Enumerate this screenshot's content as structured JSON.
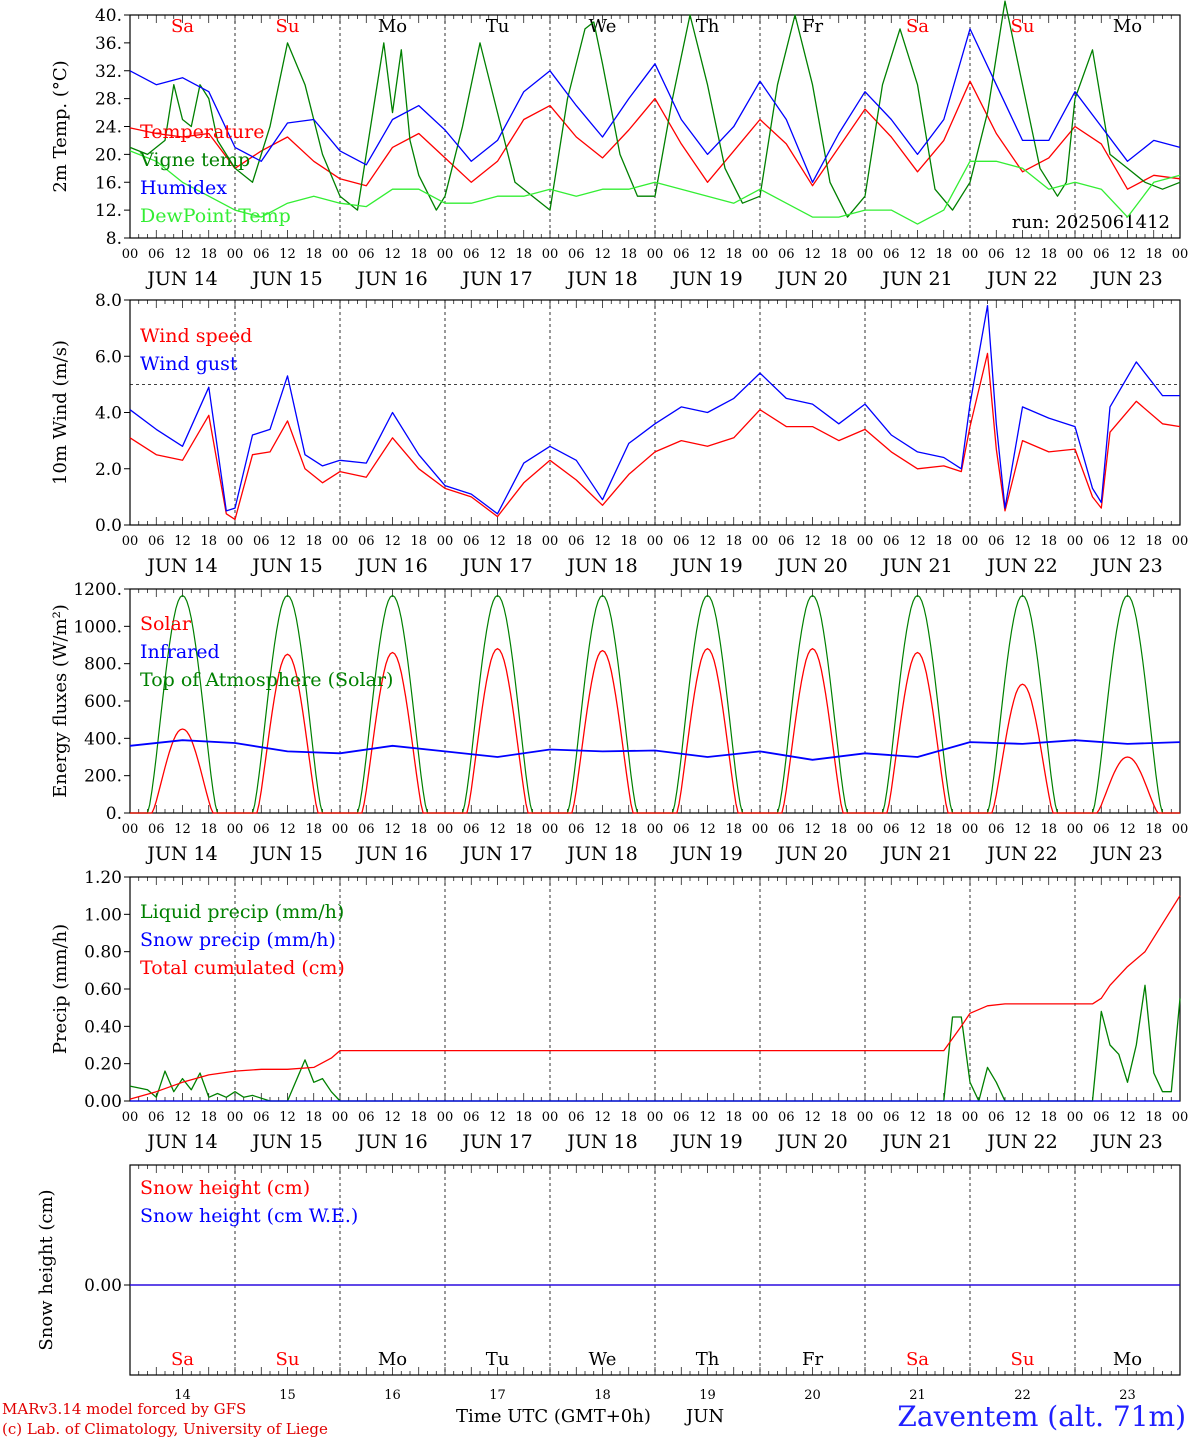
{
  "colors": {
    "red": "#ff0000",
    "darkgreen": "#008000",
    "blue": "#0000ff",
    "lightgreen": "#33ee33",
    "weekend": "#ff0000"
  },
  "days": {
    "weekday_labels": [
      "Sa",
      "Su",
      "Mo",
      "Tu",
      "We",
      "Th",
      "Fr",
      "Sa",
      "Su",
      "Mo"
    ],
    "date_labels": [
      "JUN 14",
      "JUN 15",
      "JUN 16",
      "JUN 17",
      "JUN 18",
      "JUN 19",
      "JUN 20",
      "JUN 21",
      "JUN 22",
      "JUN 23"
    ],
    "day_numbers": [
      "14",
      "15",
      "16",
      "17",
      "18",
      "19",
      "20",
      "21",
      "22",
      "23"
    ],
    "hour_ticks": [
      "00",
      "06",
      "12",
      "18"
    ],
    "final_tick": "00"
  },
  "footer": {
    "model": "MARv3.14 model forced by GFS",
    "lab": "(c) Lab. of Climatology, University of Liege",
    "xlabel": "Time UTC (GMT+0h)",
    "month": "JUN",
    "station": "Zaventem (alt. 71m)"
  },
  "chart_data": [
    {
      "type": "line",
      "ylabel": "2m Temp. (°C)",
      "ylim": [
        8,
        40
      ],
      "ytick_labels": [
        "8.",
        "12.",
        "16.",
        "20.",
        "24.",
        "28.",
        "32.",
        "36.",
        "40."
      ],
      "annotation": "run: 2025061412",
      "x_unit": "hours since JUN 14 00 UTC",
      "series": [
        {
          "name": "Temperature",
          "color": "red",
          "x": [
            0,
            6,
            12,
            18,
            24,
            30,
            36,
            42,
            48,
            54,
            60,
            66,
            72,
            78,
            84,
            90,
            96,
            102,
            108,
            114,
            120,
            126,
            132,
            138,
            144,
            150,
            156,
            162,
            168,
            174,
            180,
            186,
            192,
            198,
            204,
            210,
            216,
            222,
            228,
            234,
            240
          ],
          "y": [
            23.8,
            23,
            22.5,
            23,
            18,
            20.5,
            22.5,
            19,
            16.5,
            15.5,
            21,
            23,
            19.5,
            16,
            19,
            25,
            27,
            22.5,
            19.5,
            23.5,
            28,
            21.5,
            16,
            20.5,
            25,
            21.5,
            15.5,
            21,
            26.5,
            22.5,
            17.5,
            22,
            30.5,
            23,
            17.5,
            19.5,
            24,
            21.5,
            15,
            17,
            16.5
          ]
        },
        {
          "name": "Vigne temp",
          "color": "darkgreen",
          "x": [
            0,
            4,
            8,
            10,
            12,
            14,
            16,
            18,
            20,
            24,
            28,
            32,
            36,
            40,
            44,
            48,
            52,
            56,
            58,
            60,
            62,
            64,
            66,
            70,
            72,
            76,
            80,
            84,
            88,
            92,
            96,
            100,
            104,
            106,
            108,
            112,
            116,
            120,
            124,
            128,
            132,
            136,
            140,
            144,
            148,
            152,
            156,
            160,
            164,
            168,
            172,
            176,
            180,
            184,
            188,
            192,
            196,
            200,
            204,
            208,
            212,
            214,
            216,
            220,
            224,
            228,
            232,
            236,
            240
          ],
          "y": [
            21,
            20,
            22,
            30,
            25,
            24,
            30,
            28,
            22,
            18,
            16,
            24,
            36,
            30,
            20,
            14,
            12,
            28,
            36,
            26,
            35,
            22,
            17,
            12,
            14,
            24,
            36,
            26,
            16,
            14,
            12,
            28,
            38,
            39,
            33,
            20,
            14,
            14,
            28,
            40,
            30,
            18,
            13,
            14,
            30,
            40,
            30,
            16,
            11,
            14,
            30,
            38,
            30,
            15,
            12,
            16,
            26,
            42,
            30,
            18,
            14,
            16,
            28,
            35,
            20,
            18,
            16,
            15,
            16
          ]
        },
        {
          "name": "Humidex",
          "color": "blue",
          "x": [
            0,
            6,
            12,
            18,
            24,
            30,
            36,
            42,
            48,
            54,
            60,
            66,
            72,
            78,
            84,
            90,
            96,
            102,
            108,
            114,
            120,
            126,
            132,
            138,
            144,
            150,
            156,
            162,
            168,
            174,
            180,
            186,
            192,
            198,
            204,
            210,
            216,
            222,
            228,
            234,
            240
          ],
          "y": [
            32,
            30,
            31,
            29,
            21,
            19,
            24.5,
            25,
            20.5,
            18.5,
            25,
            27,
            23.5,
            19,
            22,
            29,
            32,
            27,
            22.5,
            28,
            33,
            25,
            20,
            24,
            30.5,
            25,
            16,
            23,
            29,
            25,
            20,
            25,
            38,
            30,
            22,
            22,
            29,
            24,
            19,
            22,
            21
          ]
        },
        {
          "name": "DewPoint Temp",
          "color": "lightgreen",
          "x": [
            0,
            6,
            12,
            18,
            24,
            30,
            36,
            42,
            48,
            54,
            60,
            66,
            72,
            78,
            84,
            90,
            96,
            102,
            108,
            114,
            120,
            126,
            132,
            138,
            144,
            150,
            156,
            162,
            168,
            174,
            180,
            186,
            192,
            198,
            204,
            210,
            216,
            222,
            228,
            234,
            240
          ],
          "y": [
            20.5,
            19,
            16,
            14,
            12,
            11,
            13,
            14,
            13,
            12.5,
            15,
            15,
            13,
            13,
            14,
            14,
            15,
            14,
            15,
            15,
            16,
            15,
            14,
            13,
            15,
            13,
            11,
            11,
            12,
            12,
            10,
            12,
            19,
            19,
            18,
            15,
            16,
            15,
            11,
            16,
            17
          ]
        }
      ]
    },
    {
      "type": "line",
      "ylabel": "10m Wind (m/s)",
      "ylim": [
        0,
        8
      ],
      "ytick_labels": [
        "0.0",
        "2.0",
        "4.0",
        "6.0",
        "8.0"
      ],
      "reference_line": 5,
      "series": [
        {
          "name": "Wind speed",
          "color": "red",
          "x": [
            0,
            6,
            12,
            18,
            22,
            24,
            28,
            32,
            36,
            40,
            44,
            48,
            54,
            60,
            66,
            72,
            78,
            84,
            90,
            96,
            102,
            108,
            114,
            120,
            126,
            132,
            138,
            144,
            150,
            156,
            162,
            168,
            174,
            180,
            186,
            190,
            192,
            196,
            198,
            200,
            204,
            210,
            216,
            220,
            222,
            224,
            230,
            236,
            240
          ],
          "y": [
            3.1,
            2.5,
            2.3,
            3.9,
            0.4,
            0.2,
            2.5,
            2.6,
            3.7,
            2.0,
            1.5,
            1.9,
            1.7,
            3.1,
            2.0,
            1.3,
            1.0,
            0.3,
            1.5,
            2.3,
            1.6,
            0.7,
            1.8,
            2.6,
            3.0,
            2.8,
            3.1,
            4.1,
            3.5,
            3.5,
            3.0,
            3.4,
            2.6,
            2.0,
            2.1,
            1.9,
            3.5,
            6.1,
            2.7,
            0.5,
            3.0,
            2.6,
            2.7,
            1.0,
            0.6,
            3.3,
            4.4,
            3.6,
            3.5
          ]
        },
        {
          "name": "Wind gust",
          "color": "blue",
          "x": [
            0,
            6,
            12,
            18,
            22,
            24,
            28,
            32,
            36,
            40,
            44,
            48,
            54,
            60,
            66,
            72,
            78,
            84,
            90,
            96,
            102,
            108,
            114,
            120,
            126,
            132,
            138,
            144,
            150,
            156,
            162,
            168,
            174,
            180,
            186,
            190,
            192,
            196,
            198,
            200,
            204,
            210,
            216,
            220,
            222,
            224,
            230,
            236,
            240
          ],
          "y": [
            4.1,
            3.4,
            2.8,
            4.9,
            0.5,
            0.6,
            3.2,
            3.4,
            5.3,
            2.5,
            2.1,
            2.3,
            2.2,
            4.0,
            2.5,
            1.4,
            1.1,
            0.4,
            2.2,
            2.8,
            2.3,
            0.9,
            2.9,
            3.6,
            4.2,
            4.0,
            4.5,
            5.4,
            4.5,
            4.3,
            3.6,
            4.3,
            3.2,
            2.6,
            2.4,
            2.0,
            4.3,
            7.8,
            3.6,
            0.6,
            4.2,
            3.8,
            3.5,
            1.3,
            0.8,
            4.2,
            5.8,
            4.6,
            4.6
          ]
        }
      ]
    },
    {
      "type": "line",
      "ylabel": "Energy fluxes (W/m²)",
      "ylim": [
        0,
        1200
      ],
      "ytick_labels": [
        "0.",
        "200.",
        "400.",
        "600.",
        "800.",
        "1000.",
        "1200."
      ],
      "toa_peak": 1165,
      "series": [
        {
          "name": "Solar",
          "color": "red",
          "daily_peaks": [
            450,
            850,
            860,
            880,
            870,
            880,
            880,
            860,
            690,
            300
          ]
        },
        {
          "name": "Infrared",
          "color": "blue",
          "x": [
            0,
            12,
            24,
            36,
            48,
            60,
            72,
            84,
            96,
            108,
            120,
            132,
            144,
            156,
            168,
            180,
            192,
            204,
            216,
            228,
            240
          ],
          "y": [
            360,
            390,
            375,
            330,
            320,
            360,
            330,
            300,
            340,
            330,
            335,
            300,
            330,
            285,
            320,
            300,
            380,
            370,
            390,
            370,
            380
          ]
        },
        {
          "name": "Top of Atmosphere (Solar)",
          "color": "darkgreen"
        }
      ]
    },
    {
      "type": "line",
      "ylabel": "Precip (mm/h)",
      "ylim": [
        0,
        1.2
      ],
      "ytick_labels": [
        "0.00",
        "0.20",
        "0.40",
        "0.60",
        "0.80",
        "1.00",
        "1.20"
      ],
      "series": [
        {
          "name": "Liquid precip (mm/h)",
          "color": "darkgreen",
          "x": [
            0,
            4,
            6,
            8,
            10,
            12,
            14,
            16,
            18,
            20,
            22,
            24,
            26,
            28,
            32,
            36,
            40,
            42,
            44,
            46,
            48,
            50,
            186,
            188,
            190,
            192,
            194,
            196,
            198,
            200,
            202,
            204,
            220,
            222,
            224,
            226,
            228,
            230,
            232,
            234,
            236,
            238,
            240
          ],
          "y": [
            0.08,
            0.06,
            0.02,
            0.16,
            0.05,
            0.12,
            0.06,
            0.15,
            0.02,
            0.04,
            0.02,
            0.05,
            0.02,
            0.03,
            0,
            0,
            0.22,
            0.1,
            0.12,
            0.05,
            0,
            0,
            0,
            0.45,
            0.45,
            0.1,
            0,
            0.18,
            0.1,
            0,
            0,
            0,
            0,
            0.48,
            0.3,
            0.25,
            0.1,
            0.3,
            0.62,
            0.15,
            0.05,
            0.05,
            0.55
          ]
        },
        {
          "name": "Snow precip (mm/h)",
          "color": "blue",
          "x": [
            0,
            240
          ],
          "y": [
            0,
            0
          ]
        },
        {
          "name": "Total cumulated (cm)",
          "color": "red",
          "x": [
            0,
            6,
            12,
            18,
            24,
            30,
            36,
            42,
            46,
            48,
            186,
            190,
            192,
            196,
            200,
            210,
            220,
            222,
            224,
            228,
            232,
            236,
            240
          ],
          "y": [
            0.01,
            0.05,
            0.1,
            0.14,
            0.16,
            0.17,
            0.17,
            0.18,
            0.23,
            0.27,
            0.27,
            0.4,
            0.47,
            0.51,
            0.52,
            0.52,
            0.52,
            0.55,
            0.62,
            0.72,
            0.8,
            0.95,
            1.1
          ]
        }
      ]
    },
    {
      "type": "line",
      "ylabel": "Snow height (cm)",
      "ytick_labels": [
        "0.00"
      ],
      "series": [
        {
          "name": "Snow height (cm)",
          "color": "red",
          "x": [
            0,
            240
          ],
          "y": [
            0,
            0
          ]
        },
        {
          "name": "Snow height (cm W.E.)",
          "color": "blue",
          "x": [
            0,
            240
          ],
          "y": [
            0,
            0
          ]
        }
      ]
    }
  ]
}
